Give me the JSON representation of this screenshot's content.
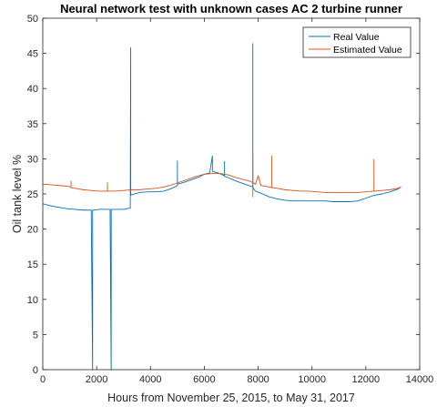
{
  "chart_data": {
    "type": "line",
    "title": "Neural network test with unknown cases AC 2 turbine runner",
    "xlabel": "Hours from November 25, 2015, to May 31, 2017",
    "ylabel": "Oil tank level %",
    "xlim": [
      0,
      14000
    ],
    "ylim": [
      0,
      50
    ],
    "xticks": [
      0,
      2000,
      4000,
      6000,
      8000,
      10000,
      12000,
      14000
    ],
    "yticks": [
      0,
      5,
      10,
      15,
      20,
      25,
      30,
      35,
      40,
      45,
      50
    ],
    "grid": false,
    "legend": {
      "placement": "top-right",
      "entries": [
        "Real Value",
        "Estimated Value"
      ]
    },
    "series": [
      {
        "name": "Real Value",
        "color": "#0072BD",
        "x": [
          0,
          300,
          600,
          900,
          1200,
          1500,
          1800,
          1850,
          1851,
          1852,
          1900,
          2100,
          2300,
          2500,
          2540,
          2541,
          2542,
          2700,
          3000,
          3250,
          3265,
          3266,
          3267,
          3300,
          3600,
          3900,
          4200,
          4500,
          4800,
          5000,
          5001,
          5002,
          5200,
          5500,
          5800,
          6000,
          6200,
          6300,
          6301,
          6302,
          6500,
          6750,
          6751,
          6752,
          6900,
          7200,
          7500,
          7800,
          7801,
          7802,
          7900,
          8100,
          8400,
          8700,
          9000,
          9300,
          9600,
          9900,
          10200,
          10500,
          10800,
          11100,
          11400,
          11700,
          12000,
          12300,
          12600,
          12900,
          13200,
          13300
        ],
        "y": [
          23.6,
          23.3,
          23.1,
          22.9,
          22.8,
          22.7,
          22.7,
          0,
          0,
          22.7,
          22.7,
          22.8,
          22.8,
          22.8,
          0,
          0,
          22.8,
          22.8,
          22.8,
          23.0,
          45.8,
          45.8,
          24.8,
          24.9,
          25.2,
          25.3,
          25.3,
          25.4,
          25.8,
          26.2,
          29.7,
          26.4,
          26.6,
          27.0,
          27.4,
          27.8,
          28.0,
          30.4,
          28.2,
          28.2,
          28.0,
          27.6,
          29.6,
          27.5,
          27.3,
          26.8,
          26.4,
          26.0,
          46.4,
          25.9,
          25.4,
          25.1,
          24.6,
          24.3,
          24.1,
          24.0,
          24.0,
          24.0,
          24.0,
          24.0,
          23.9,
          23.9,
          23.9,
          24.0,
          24.4,
          24.8,
          25.0,
          25.3,
          25.7,
          26.0
        ]
      },
      {
        "name": "Estimated Value",
        "color": "#D95319",
        "x": [
          0,
          300,
          600,
          900,
          1050,
          1051,
          1052,
          1200,
          1500,
          1800,
          2100,
          2300,
          2400,
          2401,
          2402,
          2700,
          3000,
          3300,
          3600,
          3900,
          4200,
          4500,
          4800,
          5100,
          5400,
          5700,
          6000,
          6300,
          6600,
          6900,
          7200,
          7500,
          7700,
          7800,
          7801,
          7802,
          7803,
          7900,
          8000,
          8100,
          8400,
          8500,
          8501,
          8502,
          8700,
          9000,
          9300,
          9600,
          9900,
          10200,
          10500,
          10800,
          11100,
          11400,
          11700,
          12000,
          12300,
          12301,
          12302,
          12600,
          12900,
          13200,
          13300
        ],
        "y": [
          26.4,
          26.3,
          26.2,
          26.1,
          26.0,
          26.8,
          25.9,
          25.8,
          25.6,
          25.5,
          25.4,
          25.4,
          25.4,
          26.6,
          25.4,
          25.4,
          25.5,
          25.6,
          25.6,
          25.7,
          25.8,
          26.0,
          26.3,
          26.7,
          27.1,
          27.5,
          27.8,
          27.9,
          27.9,
          27.7,
          27.3,
          27.0,
          26.8,
          26.6,
          30.8,
          24.6,
          26.6,
          26.4,
          27.6,
          26.2,
          26.0,
          25.9,
          30.4,
          25.9,
          25.8,
          25.6,
          25.5,
          25.4,
          25.4,
          25.3,
          25.2,
          25.2,
          25.2,
          25.2,
          25.2,
          25.3,
          25.4,
          29.9,
          25.4,
          25.5,
          25.6,
          25.8,
          26.0
        ]
      }
    ]
  }
}
